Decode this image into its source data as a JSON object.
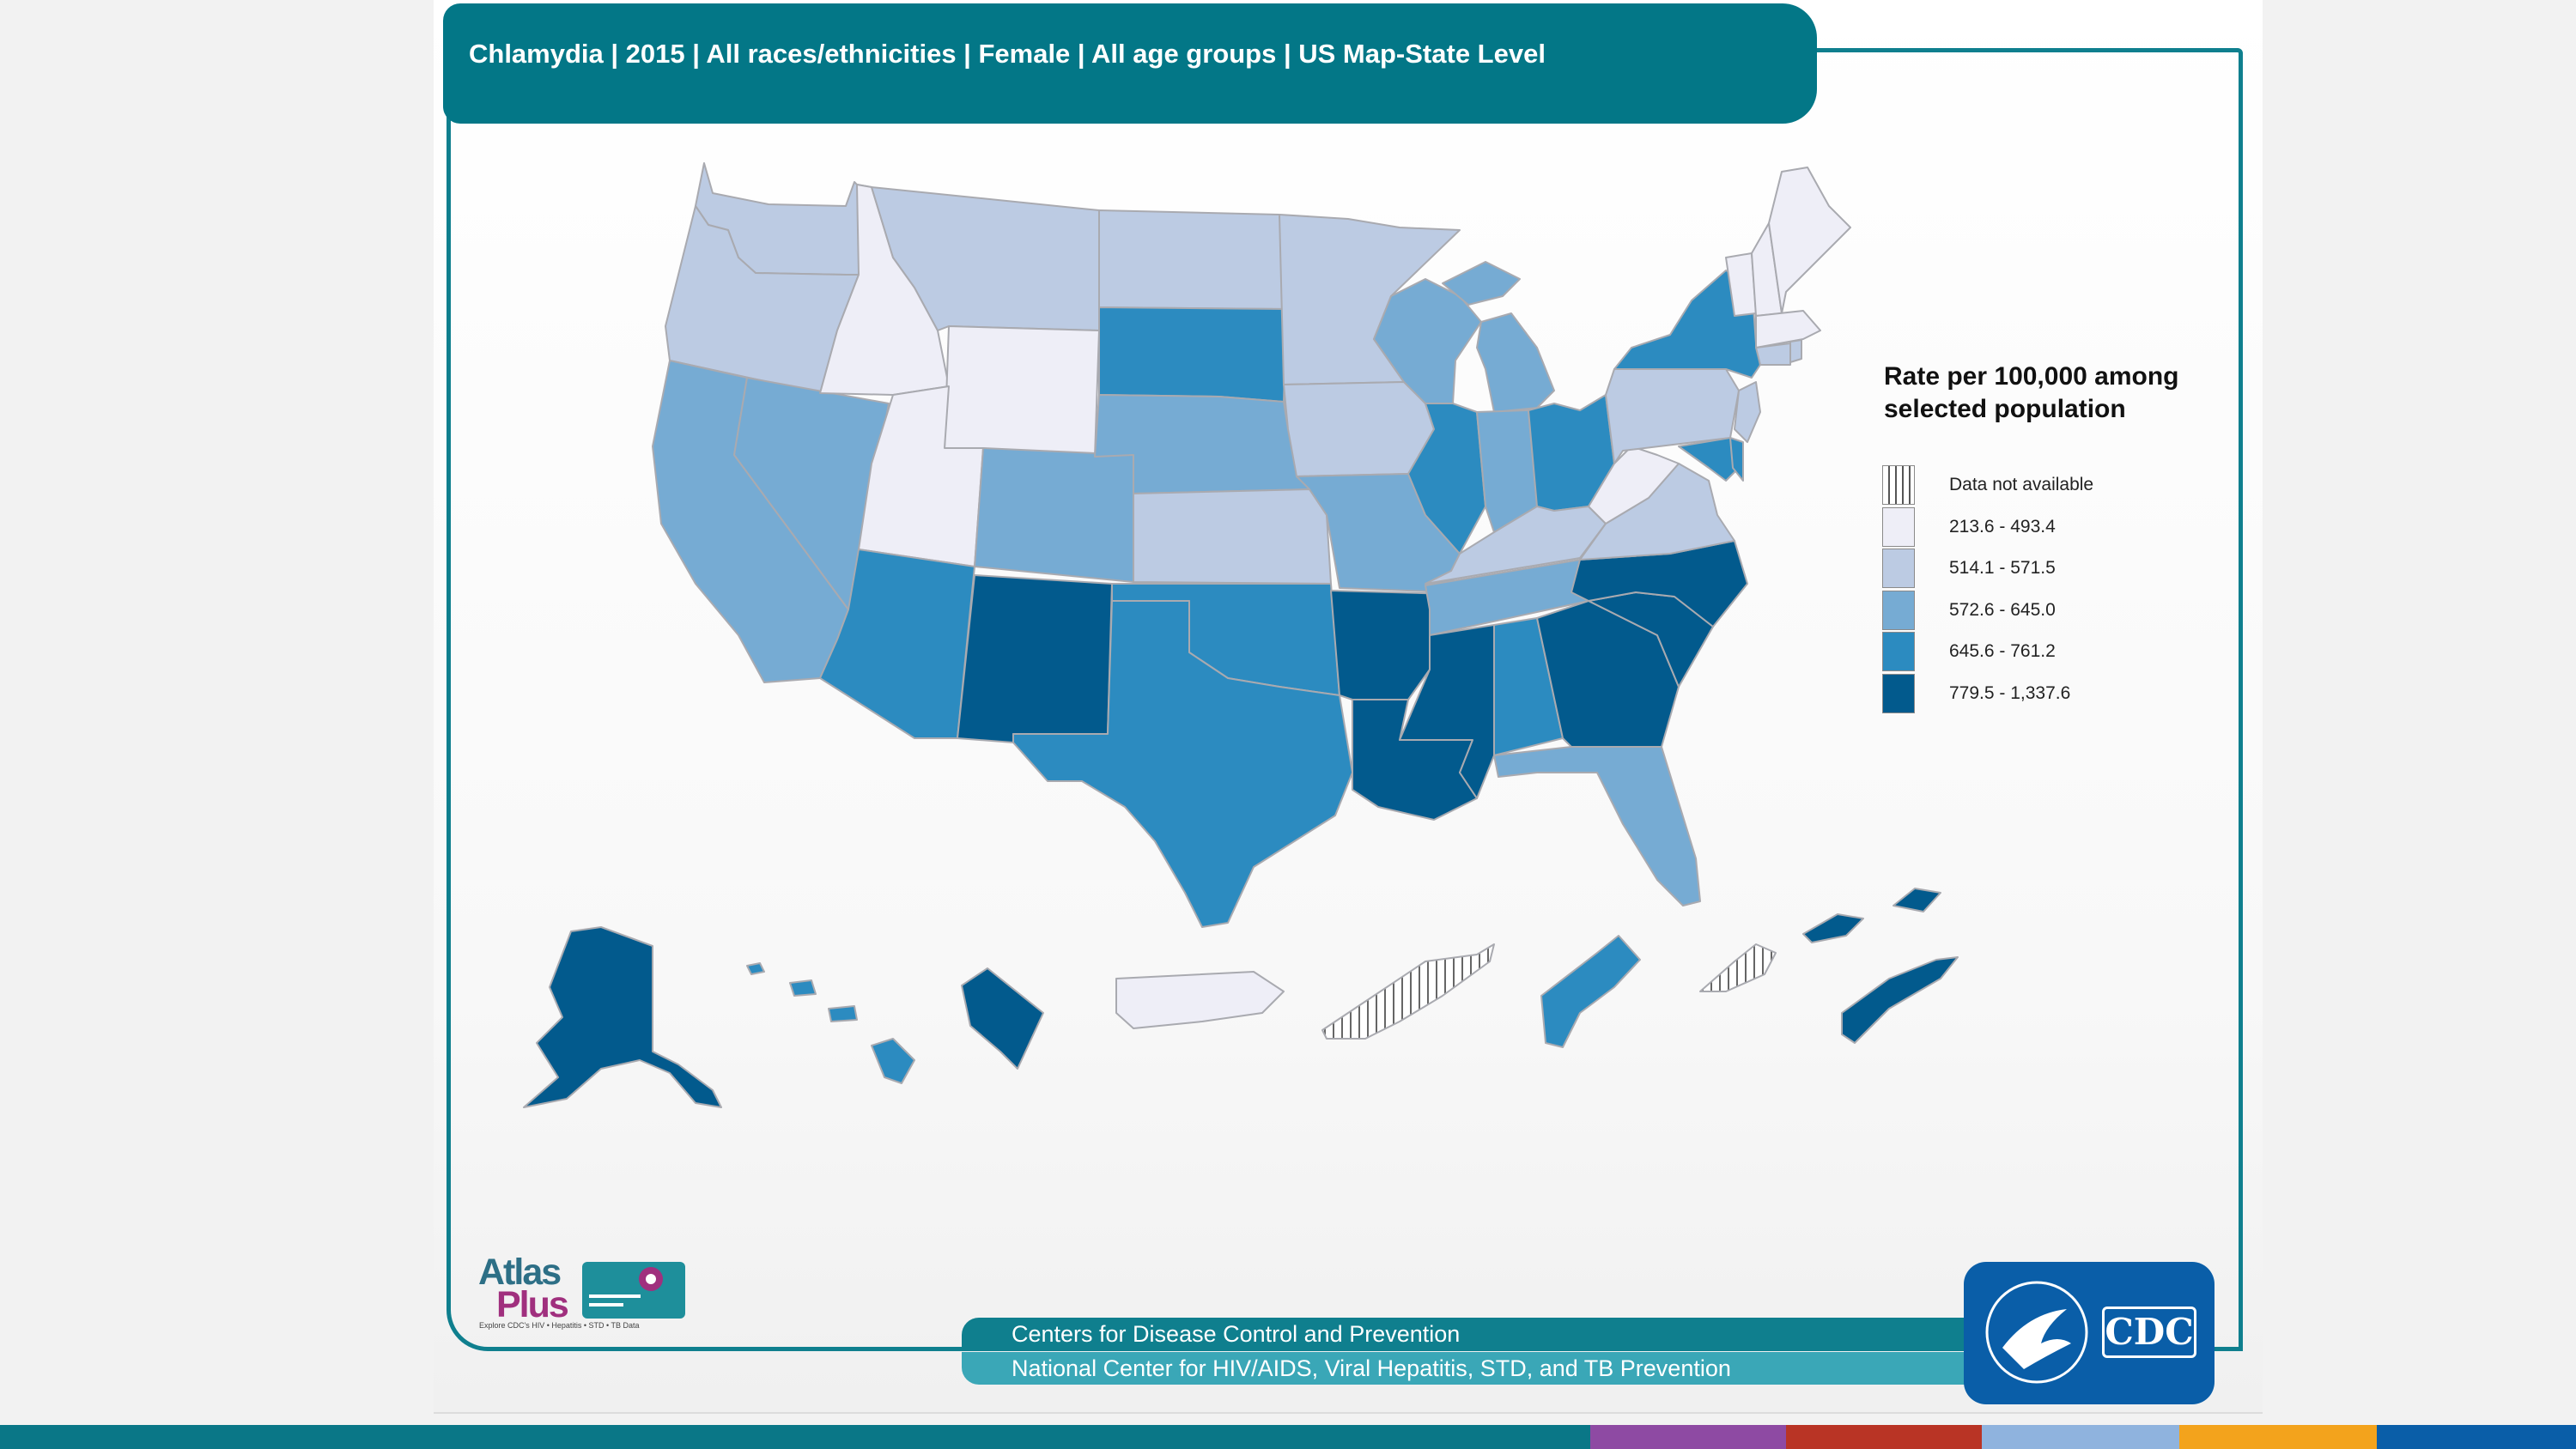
{
  "header": {
    "title": "Chlamydia | 2015 | All races/ethnicities | Female | All age groups | US Map-State Level"
  },
  "legend": {
    "title": "Rate per 100,000 among selected population",
    "items": [
      {
        "label": "Data not available",
        "class": "na",
        "color": "hatched"
      },
      {
        "label": "213.6 - 493.4",
        "class": "c1",
        "color": "#eeeef7"
      },
      {
        "label": "514.1 - 571.5",
        "class": "c2",
        "color": "#bccbe3"
      },
      {
        "label": "572.6 - 645.0",
        "class": "c3",
        "color": "#76abd3"
      },
      {
        "label": "645.6 - 761.2",
        "class": "c4",
        "color": "#2c8bc0"
      },
      {
        "label": "779.5 - 1,337.6",
        "class": "c5",
        "color": "#025a8d"
      }
    ]
  },
  "map_regions": [
    {
      "name": "Washington",
      "class": "c2"
    },
    {
      "name": "Oregon",
      "class": "c2"
    },
    {
      "name": "California",
      "class": "c3"
    },
    {
      "name": "Nevada",
      "class": "c3"
    },
    {
      "name": "Idaho",
      "class": "c1"
    },
    {
      "name": "Montana",
      "class": "c2"
    },
    {
      "name": "Wyoming",
      "class": "c1"
    },
    {
      "name": "Utah",
      "class": "c1"
    },
    {
      "name": "Arizona",
      "class": "c4"
    },
    {
      "name": "Colorado",
      "class": "c3"
    },
    {
      "name": "New Mexico",
      "class": "c5"
    },
    {
      "name": "North Dakota",
      "class": "c2"
    },
    {
      "name": "South Dakota",
      "class": "c4"
    },
    {
      "name": "Nebraska",
      "class": "c3"
    },
    {
      "name": "Kansas",
      "class": "c2"
    },
    {
      "name": "Oklahoma",
      "class": "c4"
    },
    {
      "name": "Texas",
      "class": "c4"
    },
    {
      "name": "Minnesota",
      "class": "c2"
    },
    {
      "name": "Iowa",
      "class": "c2"
    },
    {
      "name": "Missouri",
      "class": "c3"
    },
    {
      "name": "Arkansas",
      "class": "c5"
    },
    {
      "name": "Louisiana",
      "class": "c5"
    },
    {
      "name": "Wisconsin",
      "class": "c3"
    },
    {
      "name": "Illinois",
      "class": "c4"
    },
    {
      "name": "Michigan",
      "class": "c3"
    },
    {
      "name": "Indiana",
      "class": "c3"
    },
    {
      "name": "Ohio",
      "class": "c4"
    },
    {
      "name": "Kentucky",
      "class": "c2"
    },
    {
      "name": "Tennessee",
      "class": "c3"
    },
    {
      "name": "Mississippi",
      "class": "c5"
    },
    {
      "name": "Alabama",
      "class": "c4"
    },
    {
      "name": "Georgia",
      "class": "c5"
    },
    {
      "name": "Florida",
      "class": "c3"
    },
    {
      "name": "South Carolina",
      "class": "c5"
    },
    {
      "name": "North Carolina",
      "class": "c5"
    },
    {
      "name": "Virginia",
      "class": "c2"
    },
    {
      "name": "West Virginia",
      "class": "c1"
    },
    {
      "name": "Pennsylvania",
      "class": "c2"
    },
    {
      "name": "New York",
      "class": "c4"
    },
    {
      "name": "Maryland",
      "class": "c4"
    },
    {
      "name": "Delaware",
      "class": "c4"
    },
    {
      "name": "New Jersey",
      "class": "c2"
    },
    {
      "name": "Connecticut",
      "class": "c2"
    },
    {
      "name": "Rhode Island",
      "class": "c2"
    },
    {
      "name": "Massachusetts",
      "class": "c1"
    },
    {
      "name": "Vermont",
      "class": "c1"
    },
    {
      "name": "New Hampshire",
      "class": "c1"
    },
    {
      "name": "Maine",
      "class": "c1"
    },
    {
      "name": "Alaska",
      "class": "c5"
    },
    {
      "name": "Hawaii",
      "class": "c4"
    },
    {
      "name": "District of Columbia",
      "class": "c5"
    },
    {
      "name": "Puerto Rico",
      "class": "c1"
    },
    {
      "name": "U.S. Virgin Islands",
      "class": "na"
    },
    {
      "name": "Guam",
      "class": "c4"
    },
    {
      "name": "Northern Mariana Islands",
      "class": "na"
    },
    {
      "name": "American Samoa",
      "class": "c5"
    },
    {
      "name": "Palau",
      "class": "c5"
    }
  ],
  "footer": {
    "agency": "Centers for Disease Control and Prevention",
    "center": "National Center for HIV/AIDS, Viral Hepatitis, STD, and TB Prevention"
  },
  "logos": {
    "atlas_line1": "Atlas",
    "atlas_line2": "Plus",
    "atlas_tagline": "Explore CDC's HIV • Hepatitis • STD • TB Data",
    "cdc_text": "CDC"
  },
  "brand_colors": {
    "teal": "#037787",
    "teal_light": "#3aa7b7",
    "cdc_blue": "#0a5ea8",
    "strip": [
      "#0a7787",
      "#8e4aa3",
      "#b93425",
      "#8fb3de",
      "#f3a31c",
      "#0a5ea8"
    ]
  }
}
